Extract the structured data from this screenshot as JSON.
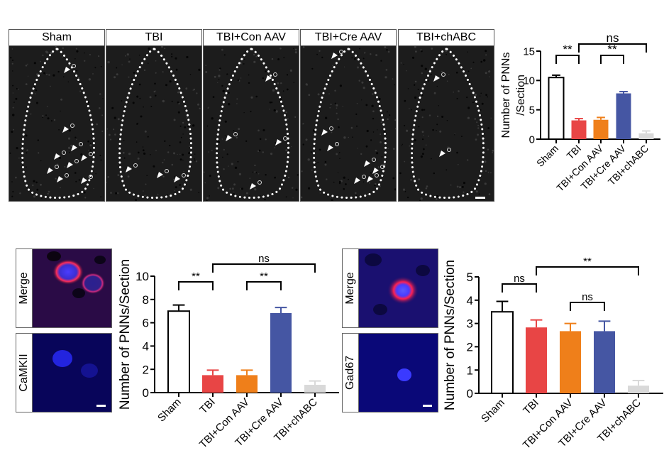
{
  "panels": [
    {
      "label": "Sham"
    },
    {
      "label": "TBI"
    },
    {
      "label": "TBI+Con AAV"
    },
    {
      "label": "TBI+Cre AAV"
    },
    {
      "label": "TBI+chABC"
    }
  ],
  "fluo_left": {
    "top_label": "Merge",
    "bottom_label": "CaMKII"
  },
  "fluo_right": {
    "top_label": "Merge",
    "bottom_label": "Gad67"
  },
  "colors": {
    "sham": "#ffffff",
    "tbi": "#e84545",
    "con": "#ef7f1a",
    "cre": "#4556a3",
    "chabc": "#d9d9d9"
  },
  "chart_data": [
    {
      "type": "bar",
      "title": "",
      "xlabel": "",
      "ylabel": "Number of PNNs /Section",
      "ylabel_lines": [
        "Number of PNNs",
        "/Section"
      ],
      "categories": [
        "Sham",
        "TBI",
        "TBI+Con AAV",
        "TBI+Cre AAV",
        "TBI+chABC"
      ],
      "values": [
        10.5,
        3.2,
        3.3,
        7.8,
        1.0
      ],
      "errors": [
        0.4,
        0.3,
        0.4,
        0.3,
        0.4
      ],
      "ylim": [
        0,
        15
      ],
      "yticks": [
        "0",
        "5",
        "10",
        "15"
      ],
      "significance": [
        {
          "from": 0,
          "to": 1,
          "label": "**"
        },
        {
          "from": 2,
          "to": 3,
          "label": "**"
        },
        {
          "from": 1,
          "to": 4,
          "label": "ns"
        }
      ]
    },
    {
      "type": "bar",
      "title": "",
      "xlabel": "",
      "ylabel": "Number of PNNs/Section",
      "categories": [
        "Sham",
        "TBI",
        "TBI+Con AAV",
        "TBI+Cre AAV",
        "TBI+chABC"
      ],
      "values": [
        7.0,
        1.5,
        1.5,
        6.83,
        0.67
      ],
      "errors": [
        0.52,
        0.43,
        0.43,
        0.48,
        0.33
      ],
      "ylim": [
        0,
        10
      ],
      "yticks": [
        "0",
        "2",
        "4",
        "6",
        "8",
        "10"
      ],
      "significance": [
        {
          "from": 0,
          "to": 1,
          "label": "**"
        },
        {
          "from": 2,
          "to": 3,
          "label": "**"
        },
        {
          "from": 1,
          "to": 4,
          "label": "ns"
        }
      ]
    },
    {
      "type": "bar",
      "title": "",
      "xlabel": "",
      "ylabel": "Number of PNNs/Section",
      "categories": [
        "Sham",
        "TBI",
        "TBI+Con AAV",
        "TBI+Cre AAV",
        "TBI+chABC"
      ],
      "values": [
        3.5,
        2.83,
        2.67,
        2.67,
        0.33
      ],
      "errors": [
        0.45,
        0.32,
        0.33,
        0.43,
        0.22
      ],
      "ylim": [
        0,
        5
      ],
      "yticks": [
        "0",
        "1",
        "2",
        "3",
        "4",
        "5"
      ],
      "significance": [
        {
          "from": 0,
          "to": 1,
          "label": "ns"
        },
        {
          "from": 2,
          "to": 3,
          "label": "ns"
        },
        {
          "from": 1,
          "to": 4,
          "label": "**"
        }
      ]
    }
  ]
}
